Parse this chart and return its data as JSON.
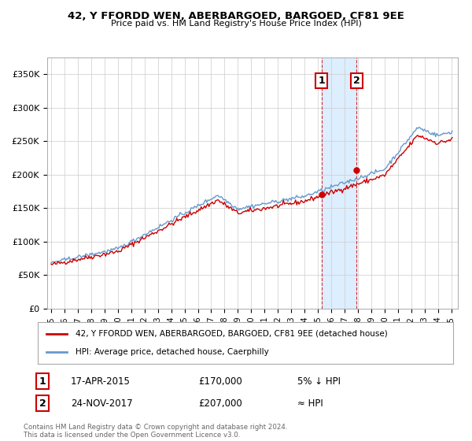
{
  "title": "42, Y FFORDD WEN, ABERBARGOED, BARGOED, CF81 9EE",
  "subtitle": "Price paid vs. HM Land Registry's House Price Index (HPI)",
  "ylim": [
    0,
    375000
  ],
  "yticks": [
    0,
    50000,
    100000,
    150000,
    200000,
    250000,
    300000,
    350000
  ],
  "ytick_labels": [
    "£0",
    "£50K",
    "£100K",
    "£150K",
    "£200K",
    "£250K",
    "£300K",
    "£350K"
  ],
  "line_color_red": "#cc0000",
  "line_color_blue": "#6699cc",
  "purchase1_x": 2015.29,
  "purchase1_y": 170000,
  "purchase1_label": "1",
  "purchase1_date": "17-APR-2015",
  "purchase1_price": "£170,000",
  "purchase1_hpi": "5% ↓ HPI",
  "purchase2_x": 2017.9,
  "purchase2_y": 207000,
  "purchase2_label": "2",
  "purchase2_date": "24-NOV-2017",
  "purchase2_price": "£207,000",
  "purchase2_hpi": "≈ HPI",
  "legend_line1": "42, Y FFORDD WEN, ABERBARGOED, BARGOED, CF81 9EE (detached house)",
  "legend_line2": "HPI: Average price, detached house, Caerphilly",
  "footnote": "Contains HM Land Registry data © Crown copyright and database right 2024.\nThis data is licensed under the Open Government Licence v3.0.",
  "bg_color": "#ffffff",
  "grid_color": "#cccccc",
  "highlight_color": "#ddeeff",
  "xmin": 1994.7,
  "xmax": 2025.5
}
